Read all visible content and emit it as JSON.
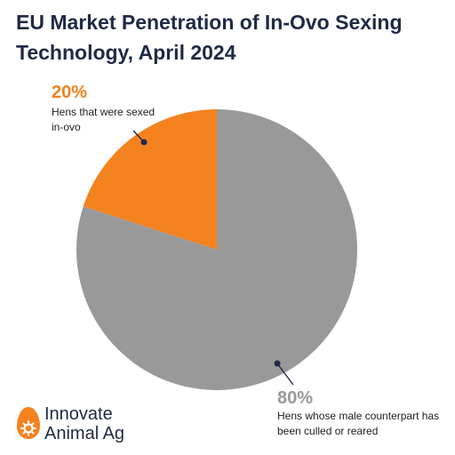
{
  "chart_data": {
    "type": "pie",
    "title": "EU Market Penetration of In-Ovo Sexing Technology, April 2024",
    "slices": [
      {
        "percent_label": "20%",
        "value": 20,
        "label": "Hens that were sexed in-ovo",
        "color": "#f4821f"
      },
      {
        "percent_label": "80%",
        "value": 80,
        "label": "Hens whose male counterpart has been culled or reared",
        "color": "#999999"
      }
    ]
  },
  "logo": {
    "text": "Innovate\nAnimal Ag",
    "icon": "egg-icon",
    "color": "#f4821f"
  }
}
